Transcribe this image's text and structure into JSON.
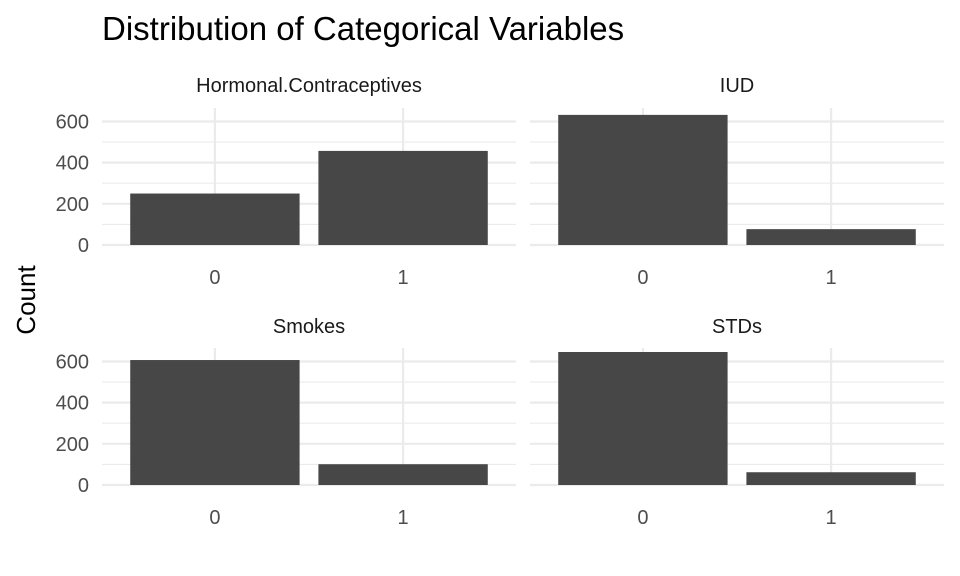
{
  "chart_data": {
    "type": "bar",
    "title": "Distribution of Categorical Variables",
    "xlabel": "",
    "ylabel": "Count",
    "ylim": [
      0,
      680
    ],
    "yticks": [
      0,
      200,
      400,
      600
    ],
    "categories": [
      "0",
      "1"
    ],
    "bar_color": "#474747",
    "grid": true,
    "facets": [
      {
        "name": "Hormonal.Contraceptives",
        "values": [
          250,
          457
        ]
      },
      {
        "name": "IUD",
        "values": [
          632,
          77
        ]
      },
      {
        "name": "Smokes",
        "values": [
          607,
          101
        ]
      },
      {
        "name": "STDs",
        "values": [
          646,
          62
        ]
      }
    ]
  }
}
